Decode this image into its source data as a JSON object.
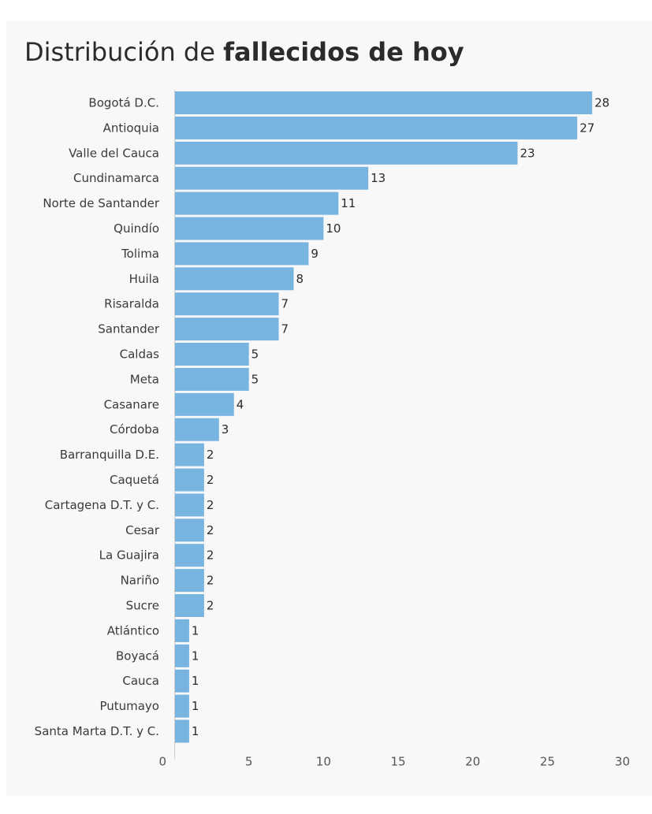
{
  "title": {
    "prefix": "Distribución de ",
    "emphasis": "fallecidos de hoy"
  },
  "chart_data": {
    "type": "bar",
    "orientation": "horizontal",
    "title": "Distribución de fallecidos de hoy",
    "xlabel": "",
    "ylabel": "",
    "xlim": [
      0,
      30
    ],
    "xticks": [
      0,
      5,
      10,
      15,
      20,
      25,
      30
    ],
    "grid": false,
    "legend": "none",
    "bar_color": "#78b4e0",
    "categories": [
      "Bogotá D.C.",
      "Antioquia",
      "Valle del Cauca",
      "Cundinamarca",
      "Norte de Santander",
      "Quindío",
      "Tolima",
      "Huila",
      "Risaralda",
      "Santander",
      "Caldas",
      "Meta",
      "Casanare",
      "Córdoba",
      "Barranquilla D.E.",
      "Caquetá",
      "Cartagena D.T. y C.",
      "Cesar",
      "La Guajira",
      "Nariño",
      "Sucre",
      "Atlántico",
      "Boyacá",
      "Cauca",
      "Putumayo",
      "Santa Marta D.T. y C."
    ],
    "values": [
      28,
      27,
      23,
      13,
      11,
      10,
      9,
      8,
      7,
      7,
      5,
      5,
      4,
      3,
      2,
      2,
      2,
      2,
      2,
      2,
      2,
      1,
      1,
      1,
      1,
      1
    ]
  }
}
